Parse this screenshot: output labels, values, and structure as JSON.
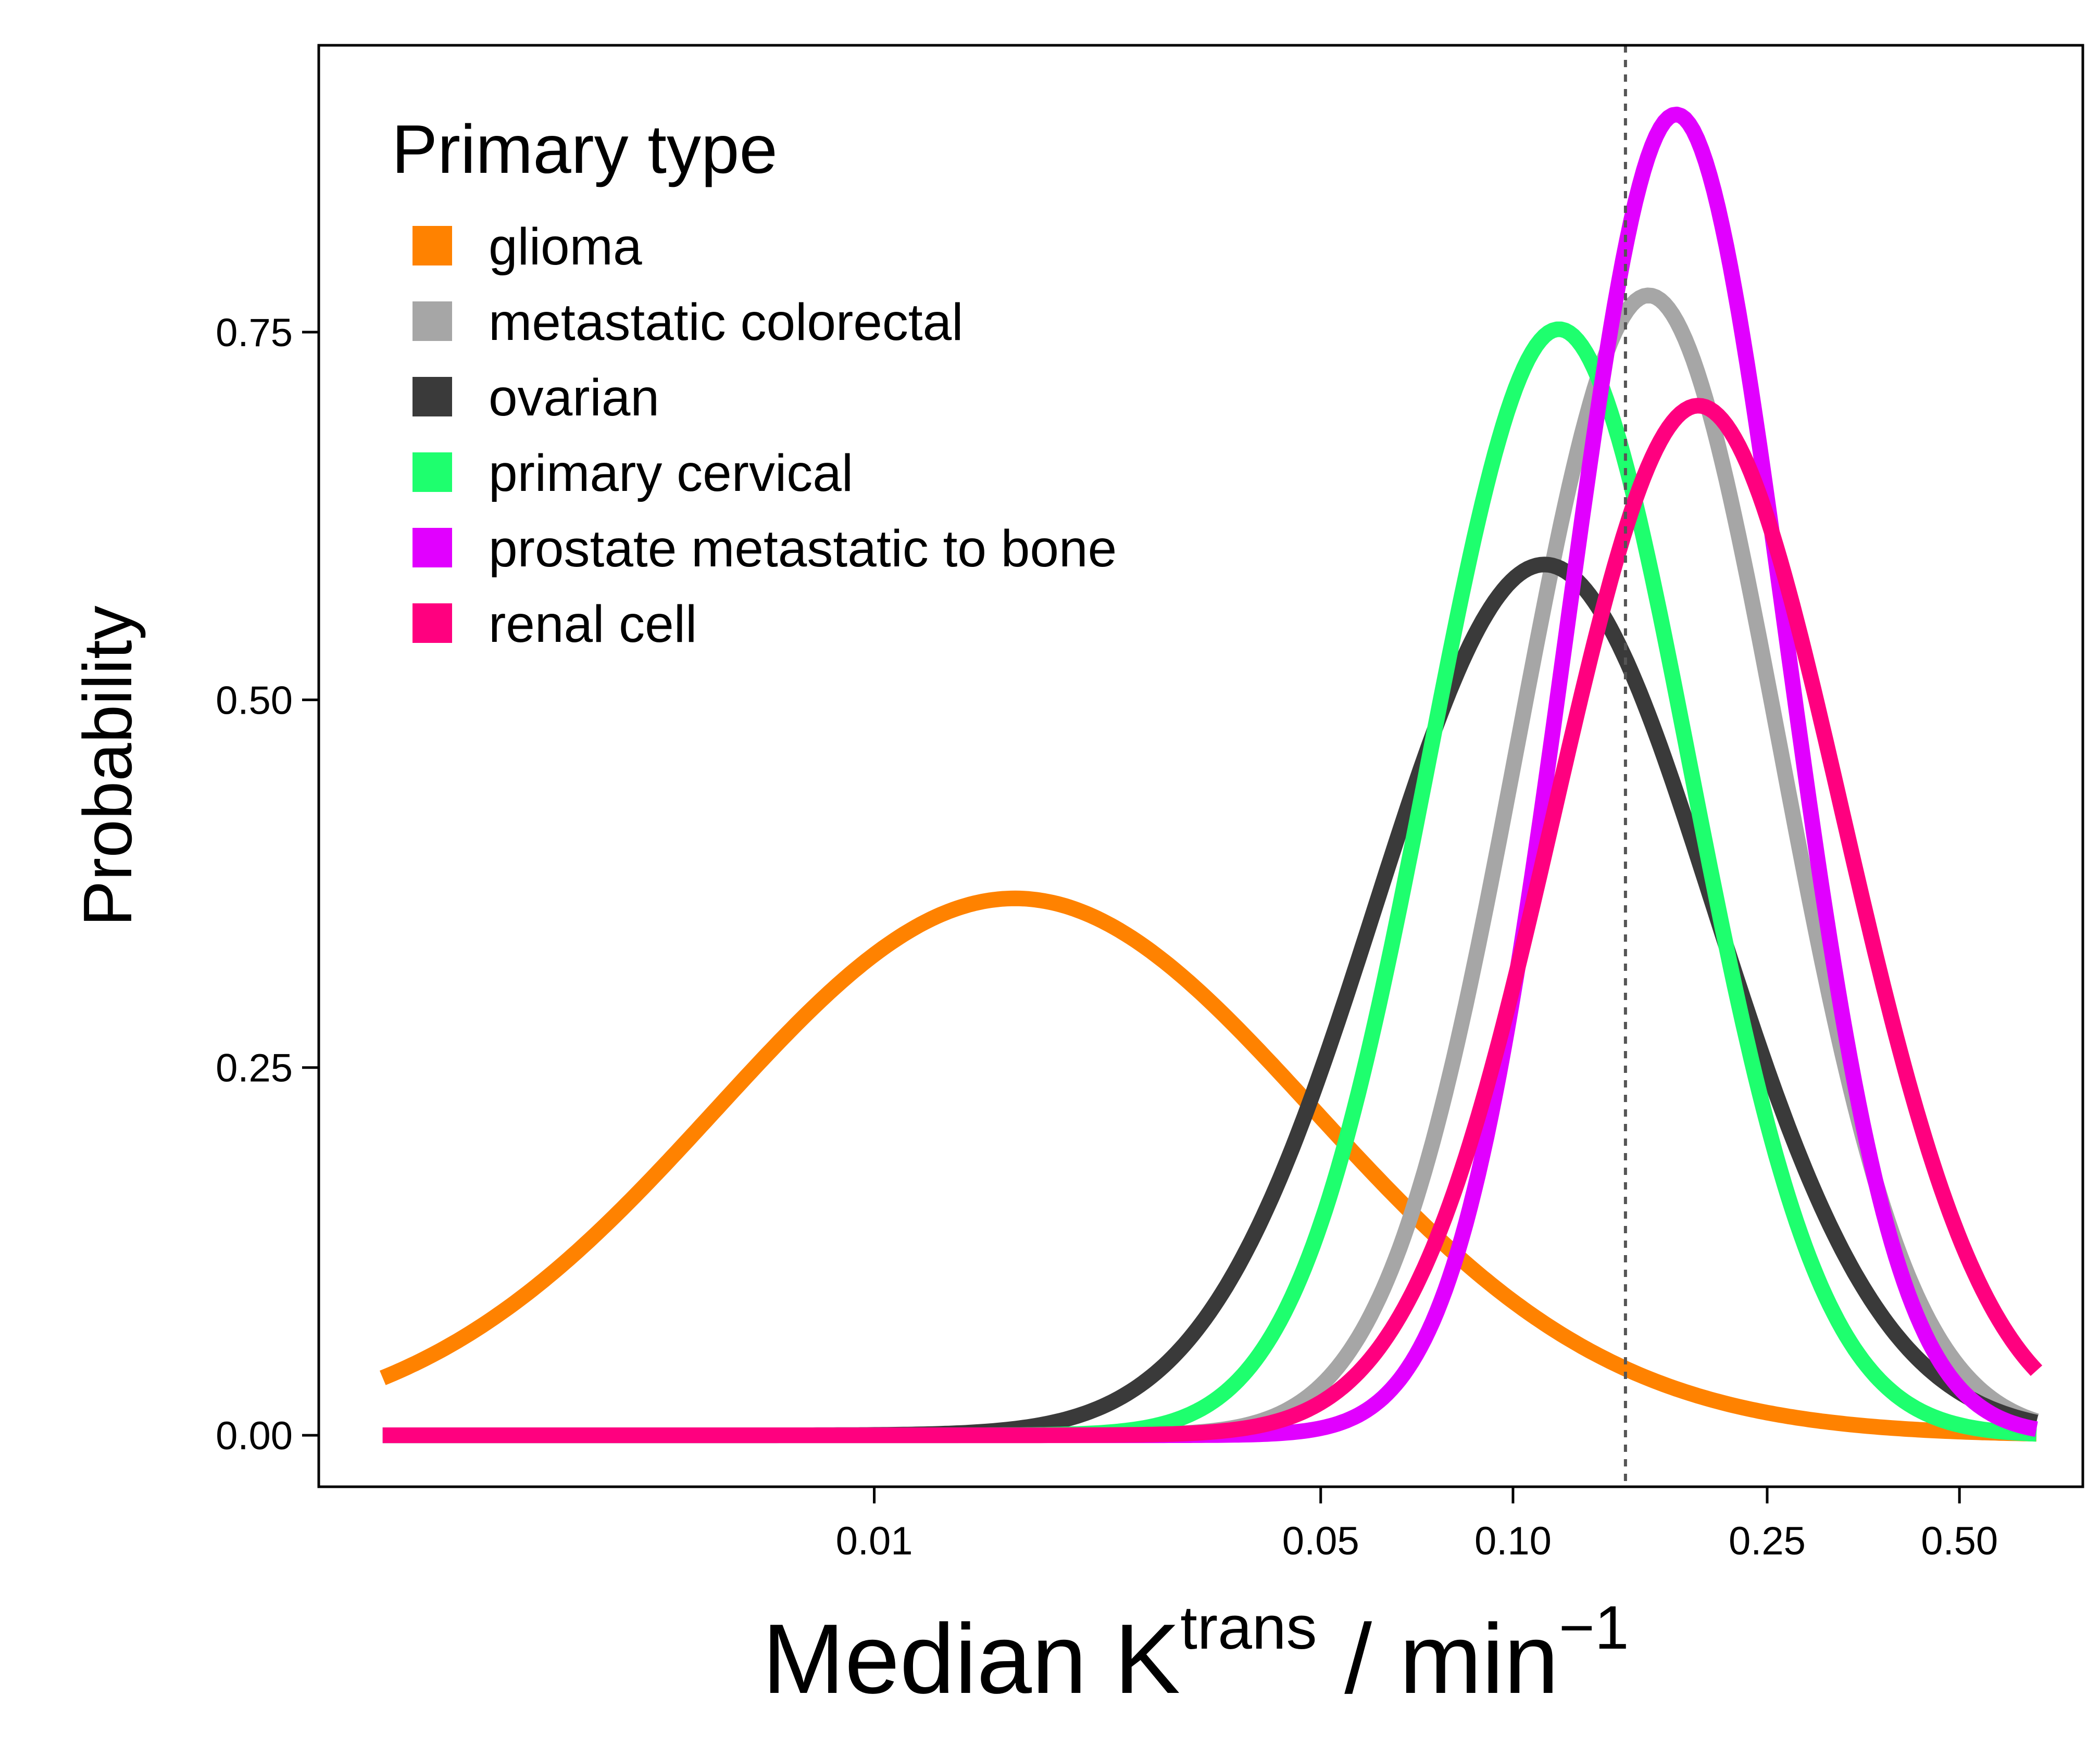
{
  "chart_data": {
    "type": "line",
    "title": "",
    "xlabel": {
      "base": "Median K",
      "superscript": "trans",
      "unit_base": " / min",
      "unit_superscript": "−1"
    },
    "ylabel": "Probability",
    "x_scale": "log10",
    "xlim": [
      0.00135,
      0.78
    ],
    "ylim": [
      -0.035,
      0.945
    ],
    "x_ticks": [
      {
        "value": 0.01,
        "label": "0.01"
      },
      {
        "value": 0.05,
        "label": "0.05"
      },
      {
        "value": 0.1,
        "label": "0.10"
      },
      {
        "value": 0.25,
        "label": "0.25"
      },
      {
        "value": 0.5,
        "label": "0.50"
      }
    ],
    "y_ticks": [
      {
        "value": 0.0,
        "label": "0.00"
      },
      {
        "value": 0.25,
        "label": "0.25"
      },
      {
        "value": 0.5,
        "label": "0.50"
      },
      {
        "value": 0.75,
        "label": "0.75"
      }
    ],
    "reference_line": {
      "x": 0.15,
      "style": "dotted",
      "color": "#555555"
    },
    "legend": {
      "title": "Primary type",
      "position": "top-left"
    },
    "curve_form": "gaussian in log10(x): peak * exp(-0.5*((log10(x)-log10(center))/sigma)^2)",
    "x_range": [
      0.0017,
      0.66
    ],
    "series": [
      {
        "name": "glioma",
        "color": "#FF8200",
        "peak": 0.365,
        "center": 0.0166,
        "sigma_log10": 0.468
      },
      {
        "name": "metastatic colorectal",
        "color": "#A6A6A6",
        "peak": 0.775,
        "center": 0.163,
        "sigma_log10": 0.205
      },
      {
        "name": "ovarian",
        "color": "#3A3A3A",
        "peak": 0.592,
        "center": 0.112,
        "sigma_log10": 0.265
      },
      {
        "name": "primary cervical",
        "color": "#1EFF6E",
        "peak": 0.752,
        "center": 0.118,
        "sigma_log10": 0.205
      },
      {
        "name": "prostate metastatic to bone",
        "color": "#E100FF",
        "peak": 0.898,
        "center": 0.18,
        "sigma_log10": 0.172
      },
      {
        "name": "renal cell",
        "color": "#FF007F",
        "peak": 0.7,
        "center": 0.195,
        "sigma_log10": 0.225
      }
    ]
  }
}
